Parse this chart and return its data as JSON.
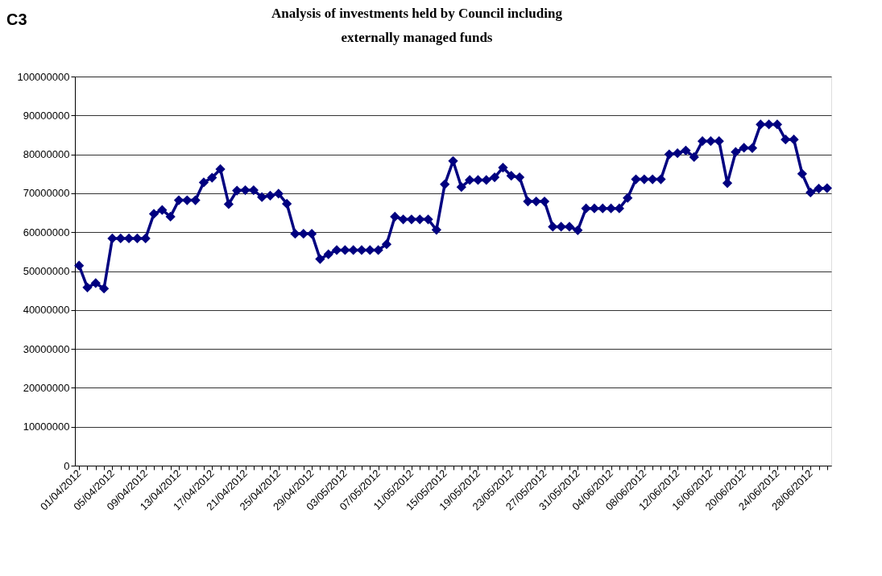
{
  "chart_data": {
    "type": "line",
    "title": "Analysis of investments held by Council including externally managed funds",
    "annotations": [
      "C3"
    ],
    "categories": [
      "01/04/2012",
      null,
      null,
      null,
      "05/04/2012",
      null,
      null,
      null,
      "09/04/2012",
      null,
      null,
      null,
      "13/04/2012",
      null,
      null,
      null,
      "17/04/2012",
      null,
      null,
      null,
      "21/04/2012",
      null,
      null,
      null,
      "25/04/2012",
      null,
      null,
      null,
      "29/04/2012",
      null,
      null,
      null,
      "03/05/2012",
      null,
      null,
      null,
      "07/05/2012",
      null,
      null,
      null,
      "11/05/2012",
      null,
      null,
      null,
      "15/05/2012",
      null,
      null,
      null,
      "19/05/2012",
      null,
      null,
      null,
      "23/05/2012",
      null,
      null,
      null,
      "27/05/2012",
      null,
      null,
      null,
      "31/05/2012",
      null,
      null,
      null,
      "04/06/2012",
      null,
      null,
      null,
      "08/06/2012",
      null,
      null,
      null,
      "12/06/2012",
      null,
      null,
      null,
      "16/06/2012",
      null,
      null,
      null,
      "20/06/2012",
      null,
      null,
      null,
      "24/06/2012",
      null,
      null,
      null,
      "28/06/2012",
      null,
      null
    ],
    "series": [
      {
        "color": "#000080",
        "values": [
          51400000,
          45800000,
          46900000,
          45500000,
          58400000,
          58400000,
          58400000,
          58400000,
          58400000,
          64700000,
          65700000,
          64000000,
          68200000,
          68200000,
          68200000,
          72800000,
          74000000,
          76200000,
          67200000,
          70700000,
          70800000,
          70800000,
          69000000,
          69400000,
          69900000,
          67300000,
          59600000,
          59600000,
          59600000,
          53100000,
          54300000,
          55400000,
          55400000,
          55400000,
          55400000,
          55400000,
          55400000,
          56900000,
          64000000,
          63300000,
          63300000,
          63300000,
          63300000,
          60600000,
          72300000,
          78300000,
          71600000,
          73400000,
          73400000,
          73400000,
          74100000,
          76600000,
          74500000,
          74100000,
          67900000,
          67900000,
          67900000,
          61400000,
          61400000,
          61400000,
          60500000,
          66100000,
          66100000,
          66100000,
          66100000,
          66100000,
          68800000,
          73600000,
          73600000,
          73600000,
          73600000,
          80000000,
          80300000,
          81000000,
          79300000,
          83400000,
          83400000,
          83400000,
          72600000,
          80600000,
          81700000,
          81600000,
          87700000,
          87700000,
          87700000,
          83800000,
          83800000,
          75000000,
          70200000,
          71200000,
          71300000
        ]
      }
    ],
    "ylim": [
      0,
      100000000
    ],
    "yticks": [
      0,
      10000000,
      20000000,
      30000000,
      40000000,
      50000000,
      60000000,
      70000000,
      80000000,
      90000000,
      100000000
    ],
    "grid": "y",
    "legend": false,
    "marker": "diamond",
    "line_style": "solid"
  }
}
